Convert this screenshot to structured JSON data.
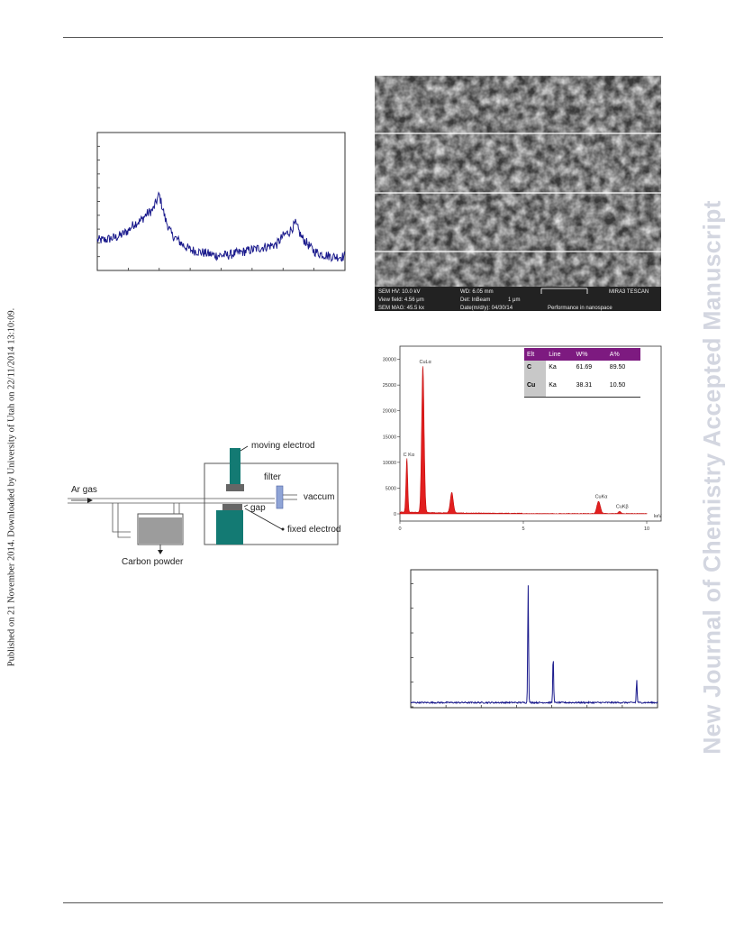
{
  "side_note": "Published on 21 November 2014. Downloaded by University of Utah on 22/11/2014 13:10:09.",
  "watermark": "New Journal of Chemistry Accepted Manuscript",
  "sem": {
    "line1": "SEM HV: 10.0 kV",
    "line2": "View field: 4.56 μm",
    "line3": "SEM MAG: 45.5 kx",
    "col2_1": "WD: 6.05 mm",
    "col2_2": "Det: InBeam",
    "col2_3": "Date(m/d/y): 04/30/14",
    "scale": "1 μm",
    "brand": "MIRA3 TESCAN",
    "footer": "Performance in nanospace"
  },
  "diagram": {
    "ar_gas": "Ar gas",
    "moving": "moving electrod",
    "filter": "filter",
    "gap": "gap",
    "vaccum": "vaccum",
    "fixed": "fixed electrod",
    "powder": "Carbon powder"
  },
  "eds_table": {
    "headers": [
      "Elt",
      "Line",
      "W%",
      "A%"
    ],
    "rows": [
      [
        "C",
        "Ka",
        "61.69",
        "89.50"
      ],
      [
        "Cu",
        "Ka",
        "38.31",
        "10.50"
      ]
    ]
  },
  "chart_data": [
    {
      "type": "line",
      "title": "",
      "xlabel": "",
      "ylabel": "",
      "description_only": false,
      "x": [
        0,
        1,
        2,
        3,
        4,
        5,
        6,
        7,
        8,
        9,
        10,
        11,
        12,
        13,
        14,
        15,
        16,
        17,
        18,
        19,
        20,
        21,
        22,
        23,
        24,
        25,
        26,
        27,
        28,
        29,
        30,
        31,
        32,
        33,
        34,
        35,
        36,
        37,
        38,
        39,
        40
      ],
      "series": [
        {
          "values": [
            22,
            22,
            23,
            24,
            26,
            29,
            34,
            36,
            41,
            44,
            55,
            37,
            26,
            22,
            18,
            15,
            14,
            13,
            12,
            11,
            11,
            11,
            12,
            13,
            14,
            15,
            16,
            17,
            18,
            19,
            25,
            28,
            34,
            24,
            19,
            14,
            12,
            11,
            10,
            10,
            10
          ]
        }
      ],
      "ylim": [
        0,
        100
      ]
    },
    {
      "type": "line",
      "title": "",
      "xlabel": "",
      "ylabel": "",
      "x": [
        0,
        1,
        2,
        3,
        4,
        5,
        6,
        7,
        8,
        9,
        10
      ],
      "x_ticks": [
        "0",
        "5",
        "10"
      ],
      "y_ticks": [
        "0",
        "5000",
        "10000",
        "15000",
        "20000",
        "25000",
        "30000"
      ],
      "x_unit": "keV",
      "peaks": [
        {
          "label": "C Kα",
          "x": 0.28,
          "y": 10500
        },
        {
          "label": "CuLα",
          "x": 0.93,
          "y": 28500
        },
        {
          "label": "",
          "x": 2.1,
          "y": 4000
        },
        {
          "label": "CuKα",
          "x": 8.05,
          "y": 2400
        },
        {
          "label": "CuKβ",
          "x": 8.9,
          "y": 400
        }
      ],
      "ylim": [
        0,
        30000
      ],
      "xlim": [
        0,
        10
      ]
    },
    {
      "type": "line",
      "title": "",
      "xlabel": "",
      "ylabel": "",
      "peaks": [
        {
          "x": 43.3,
          "y": 100
        },
        {
          "x": 50.4,
          "y": 40
        },
        {
          "x": 74.1,
          "y": 19
        }
      ],
      "xlim": [
        10,
        80
      ],
      "ylim": [
        0,
        105
      ]
    }
  ]
}
